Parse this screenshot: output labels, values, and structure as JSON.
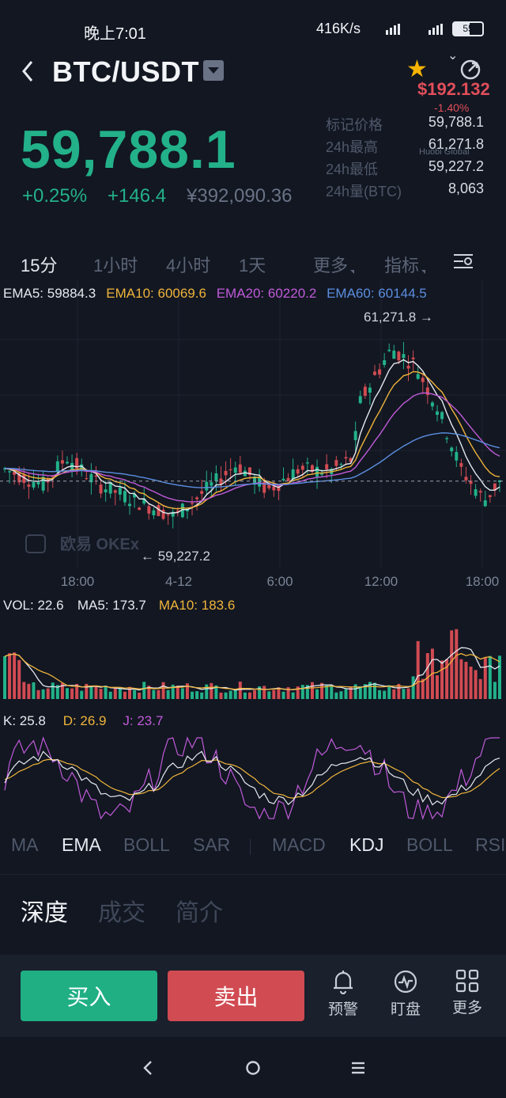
{
  "status": {
    "time": "晚上7:01",
    "net": "416K/s",
    "battery": "55"
  },
  "header": {
    "pair": "BTC/USDT",
    "usd_price": "$192.132",
    "usd_change": "-1.40%",
    "brand_colors": {
      "up": "#23b189",
      "down": "#e04e5a",
      "bg": "#121722"
    }
  },
  "ticker": {
    "last_price": "59,788.1",
    "change_pct": "+0.25%",
    "change_abs": "+146.4",
    "cny_value": "¥392,090.36",
    "stats": [
      {
        "label": "标记价格",
        "value": "59,788.1"
      },
      {
        "label": "24h最高",
        "value": "61,271.8"
      },
      {
        "label": "24h最低",
        "value": "59,227.2"
      },
      {
        "label": "24h量(BTC)",
        "value": "8,063"
      }
    ],
    "watermark": "Huobi Global"
  },
  "intervals": {
    "items": [
      "15分",
      "1小时",
      "4小时",
      "1天",
      "更多",
      "指标"
    ],
    "active": "15分"
  },
  "chart_data": {
    "type": "candlestick",
    "main_legend": [
      {
        "label": "EMA5: 59884.3",
        "color": "#e6e9ef"
      },
      {
        "label": "EMA10: 60069.6",
        "color": "#f0b43a"
      },
      {
        "label": "EMA20: 60220.2",
        "color": "#c15ad9"
      },
      {
        "label": "EMA60: 60144.5",
        "color": "#5c8ee0"
      }
    ],
    "high_label": "61,271.8 →",
    "low_label": "← 59,227.2",
    "x_ticks": [
      "18:00",
      "4-12",
      "6:00",
      "12:00",
      "18:00"
    ],
    "price_range": [
      59100,
      61400
    ],
    "high": 61271.8,
    "low": 59227.2,
    "current": 59788.1,
    "watermark_text": "欧易 OKEx",
    "vol_legend": [
      {
        "label": "VOL: 22.6",
        "color": "#e6e9ef"
      },
      {
        "label": "MA5: 173.7",
        "color": "#e6e9ef"
      },
      {
        "label": "MA10: 183.6",
        "color": "#f0b43a"
      }
    ],
    "kdj_legend": [
      {
        "label": "K: 25.8",
        "color": "#e6e9ef"
      },
      {
        "label": "D: 26.9",
        "color": "#f0b43a"
      },
      {
        "label": "J: 23.7",
        "color": "#c15ad9"
      }
    ]
  },
  "indicators": {
    "items": [
      "MA",
      "EMA",
      "BOLL",
      "SAR",
      "MACD",
      "KDJ",
      "BOLL",
      "RSI"
    ],
    "active": [
      "EMA",
      "KDJ"
    ]
  },
  "detail_tabs": [
    "深度",
    "成交",
    "简介"
  ],
  "actions": {
    "buy": "买入",
    "sell": "卖出",
    "alert": "预警",
    "watch": "盯盘",
    "more": "更多"
  }
}
